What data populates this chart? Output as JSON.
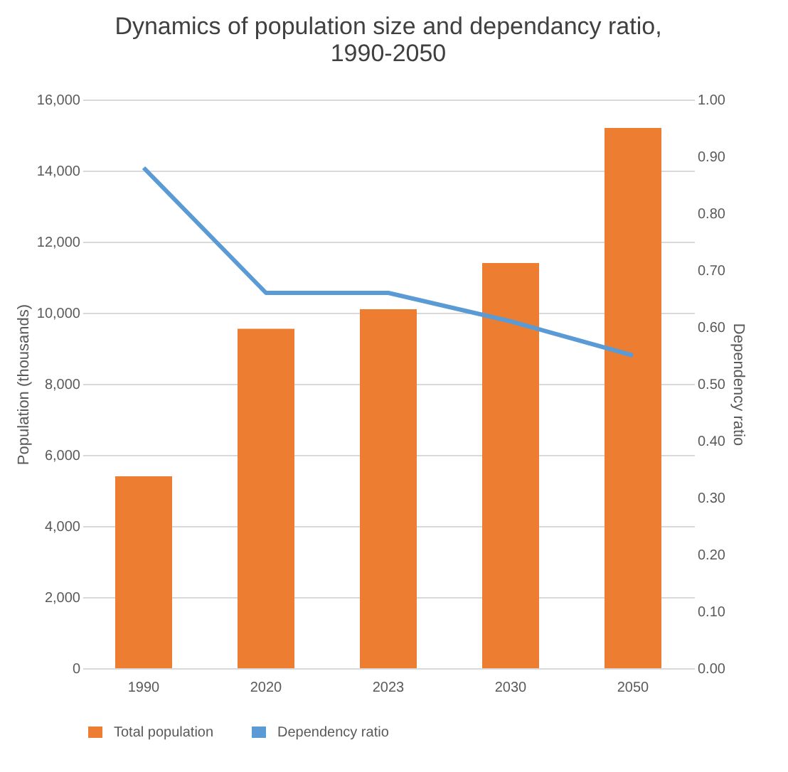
{
  "chart_data": {
    "type": "bar",
    "title": "Dynamics of population size and dependancy ratio, 1990-2050",
    "categories": [
      "1990",
      "2020",
      "2023",
      "2030",
      "2050"
    ],
    "series": [
      {
        "name": "Total population",
        "color": "#ed7d31",
        "values": [
          5400,
          9550,
          10100,
          11400,
          15200
        ]
      },
      {
        "name": "Dependency ratio",
        "type": "line",
        "axis": "y2",
        "color": "#5b9bd5",
        "values": [
          0.88,
          0.66,
          0.66,
          0.61,
          0.55
        ]
      }
    ],
    "ylabel": "Population (thousands)",
    "y2label": "Dependency ratio",
    "ylim": [
      0,
      16000
    ],
    "yticks": [
      0,
      {
        "value": 2000,
        "label": "2,000"
      },
      {
        "value": 4000,
        "label": "4,000"
      },
      {
        "value": 6000,
        "label": "6,000"
      },
      {
        "value": 8000,
        "label": "8,000"
      },
      {
        "value": 10000,
        "label": "10,000"
      },
      {
        "value": 12000,
        "label": "12,000"
      },
      {
        "value": 14000,
        "label": "14,000"
      },
      {
        "value": 16000,
        "label": "16,000"
      }
    ],
    "y2lim": [
      0,
      1
    ],
    "y2ticks": [
      {
        "value": 0,
        "label": "0.00"
      },
      {
        "value": 0.1,
        "label": "0.10"
      },
      {
        "value": 0.2,
        "label": "0.20"
      },
      {
        "value": 0.3,
        "label": "0.30"
      },
      {
        "value": 0.4,
        "label": "0.40"
      },
      {
        "value": 0.5,
        "label": "0.50"
      },
      {
        "value": 0.6,
        "label": "0.60"
      },
      {
        "value": 0.7,
        "label": "0.70"
      },
      {
        "value": 0.8,
        "label": "0.80"
      },
      {
        "value": 0.9,
        "label": "0.90"
      },
      {
        "value": 1,
        "label": "1.00"
      }
    ],
    "grid": "y",
    "legend": "bottom",
    "marker": "none",
    "line_style": "solid"
  }
}
